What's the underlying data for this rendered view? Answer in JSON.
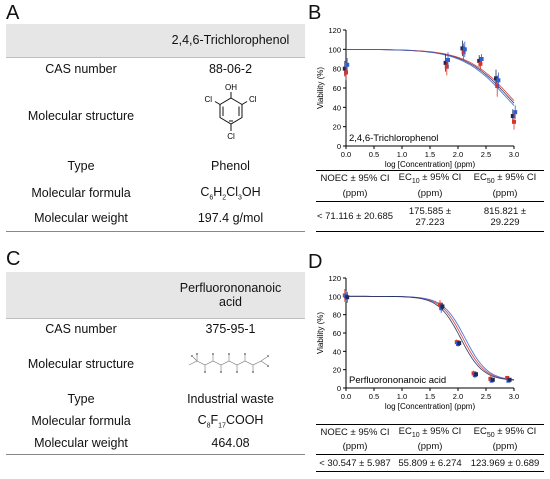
{
  "panels": {
    "A": "A",
    "B": "B",
    "C": "C",
    "D": "D"
  },
  "compound1": {
    "name": "2,4,6-Trichlorophenol",
    "cas_label": "CAS number",
    "cas": "88-06-2",
    "structure_label": "Molecular structure",
    "atoms": {
      "oh": "OH",
      "cl_left": "Cl",
      "cl_right": "Cl",
      "cl_bottom": "Cl"
    },
    "type_label": "Type",
    "type": "Phenol",
    "formula_label": "Molecular formula",
    "formula": {
      "p1": "C",
      "s1": "6",
      "p2": "H",
      "s2": "2",
      "p3": "Cl",
      "s3": "3",
      "p4": "OH"
    },
    "weight_label": "Molecular weight",
    "weight": "197.4 g/mol"
  },
  "compound2": {
    "name_line1": "Perfluorononanoic",
    "name_line2": "acid",
    "cas_label": "CAS number",
    "cas": "375-95-1",
    "structure_label": "Molecular structure",
    "type_label": "Type",
    "type": "Industrial waste",
    "formula_label": "Molecular formula",
    "formula": {
      "p1": "C",
      "s1": "8",
      "p2": "F",
      "s2": "17",
      "p3": "COOH"
    },
    "weight_label": "Molecular weight",
    "weight": "464.08"
  },
  "results1": {
    "h1": "NOEC ± 95% CI",
    "h2a": "EC",
    "h2s": "10",
    "h2b": " ± 95% CI",
    "h3a": "EC",
    "h3s": "50",
    "h3b": " ± 95% CI",
    "unit": "(ppm)",
    "v1": "< 71.116 ± 20.685",
    "v2a": "175.585 ±",
    "v2b": "27.223",
    "v3a": "815.821 ±",
    "v3b": "29.229"
  },
  "results2": {
    "h1": "NOEC ± 95% CI",
    "h2a": "EC",
    "h2s": "10",
    "h2b": " ± 95% CI",
    "h3a": "EC",
    "h3s": "50",
    "h3b": " ± 95% CI",
    "unit": "(ppm)",
    "v1": "< 30.547 ± 5.987",
    "v2": "55.809 ± 6.274",
    "v3": "123.969 ± 0.689"
  },
  "chart_data": [
    {
      "type": "scatter",
      "annotation": "2,4,6-Trichlorophenol",
      "xlabel": "log [Concentration] (ppm)",
      "ylabel": "Viability (%)",
      "xlim": [
        0,
        3
      ],
      "ylim": [
        0,
        120
      ],
      "xticks": [
        0.0,
        0.5,
        1.0,
        1.5,
        2.0,
        2.5,
        3.0
      ],
      "yticks": [
        0,
        20,
        40,
        60,
        80,
        100,
        120
      ],
      "tick_labels_x": [
        "0.0",
        "0.5",
        "1.0",
        "1.5",
        "2.0",
        "2.5",
        "3.0"
      ],
      "tick_labels_y": [
        "0",
        "20",
        "40",
        "60",
        "80",
        "100",
        "120"
      ],
      "colors": [
        "#1f2a5a",
        "#d9342b",
        "#2f5fd0",
        "#000000"
      ],
      "x": [
        0,
        1.8,
        2.1,
        2.4,
        2.7,
        3.0
      ],
      "series": [
        {
          "values": [
            80,
            86,
            101,
            88,
            70,
            31
          ],
          "err": [
            8,
            9,
            8,
            6,
            9,
            7
          ]
        },
        {
          "values": [
            76,
            82,
            97,
            85,
            62,
            25
          ],
          "err": [
            8,
            9,
            9,
            6,
            11,
            8
          ]
        },
        {
          "values": [
            84,
            89,
            100,
            90,
            68,
            35
          ],
          "err": [
            7,
            8,
            8,
            5,
            8,
            7
          ]
        }
      ],
      "fit": {
        "top": 100,
        "bottom": 0,
        "logec50": 2.91,
        "hill": 1.1
      }
    },
    {
      "type": "scatter",
      "annotation": "Perfluorononanoic acid",
      "xlabel": "log [Concentration] (ppm)",
      "ylabel": "Viability (%)",
      "xlim": [
        0,
        3
      ],
      "ylim": [
        0,
        120
      ],
      "xticks": [
        0.0,
        0.5,
        1.0,
        1.5,
        2.0,
        2.5,
        3.0
      ],
      "yticks": [
        0,
        20,
        40,
        60,
        80,
        100,
        120
      ],
      "tick_labels_x": [
        "0.0",
        "0.5",
        "1.0",
        "1.5",
        "2.0",
        "2.5",
        "3.0"
      ],
      "tick_labels_y": [
        "0",
        "20",
        "40",
        "60",
        "80",
        "100",
        "120"
      ],
      "colors": [
        "#d9342b",
        "#2f5fd0",
        "#1f2a5a"
      ],
      "x": [
        0,
        1.7,
        2.0,
        2.3,
        2.6,
        2.9
      ],
      "series": [
        {
          "values": [
            101,
            91,
            50,
            16,
            10,
            11
          ],
          "err": [
            7,
            5,
            3,
            3,
            3,
            2
          ]
        },
        {
          "values": [
            100,
            87,
            48,
            14,
            8,
            8
          ],
          "err": [
            6,
            5,
            3,
            3,
            2,
            2
          ]
        },
        {
          "values": [
            99,
            89,
            49,
            15,
            9,
            9
          ],
          "err": [
            6,
            4,
            3,
            3,
            2,
            2
          ]
        }
      ],
      "fit": {
        "top": 100,
        "bottom": 8,
        "logec50": 2.09,
        "hill": 2.2
      }
    }
  ]
}
